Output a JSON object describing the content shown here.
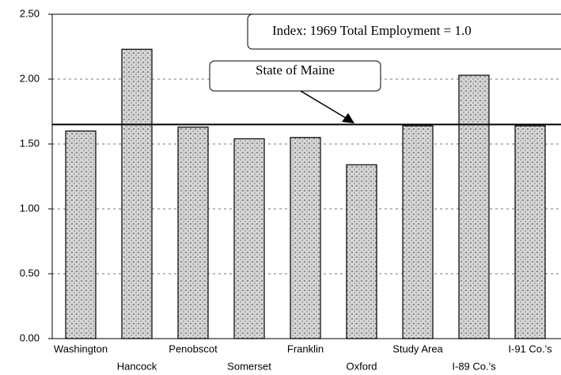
{
  "chart_data": {
    "type": "bar",
    "categories": [
      "Washington",
      "Hancock",
      "Penobscot",
      "Somerset",
      "Franklin",
      "Oxford",
      "Study Area",
      "I-89 Co.'s",
      "I-91 Co.'s"
    ],
    "values": [
      1.6,
      2.23,
      1.63,
      1.54,
      1.55,
      1.34,
      1.64,
      2.03,
      1.64
    ],
    "color": "#b8b8b8",
    "ylim": [
      0,
      2.5
    ],
    "yticks": [
      {
        "value": 0,
        "label": "0.00"
      },
      {
        "value": 0.5,
        "label": "0.50"
      },
      {
        "value": 1,
        "label": "1.00"
      },
      {
        "value": 1.5,
        "label": "1.50"
      },
      {
        "value": 2,
        "label": "2.00"
      },
      {
        "value": 2.5,
        "label": "2.50"
      }
    ],
    "grid": true,
    "reference_line": {
      "value": 1.65,
      "label": "State of Maine"
    },
    "annotation": "Index: 1969 Total Employment = 1.0"
  }
}
